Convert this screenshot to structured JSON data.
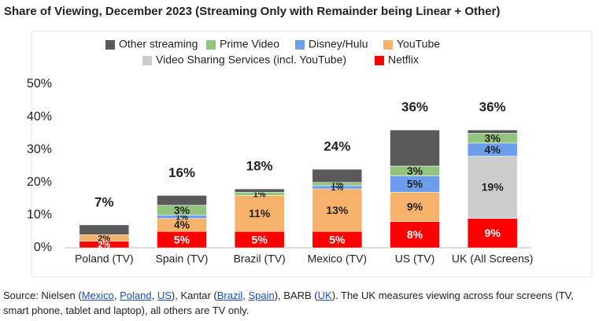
{
  "chart_data": {
    "type": "stacked-bar",
    "title": "Share of Viewing, December 2023 (Streaming Only with Remainder being Linear + Other)",
    "categories": [
      "Poland (TV)",
      "Spain (TV)",
      "Brazil (TV)",
      "Mexico (TV)",
      "US (TV)",
      "UK (All Screens)"
    ],
    "series": [
      {
        "name": "Netflix",
        "color": "#ff0000",
        "values": [
          2,
          5,
          5,
          5,
          8,
          9
        ],
        "value_labels": [
          "2%",
          "5%",
          "5%",
          "5%",
          "8%",
          "9%"
        ]
      },
      {
        "name": "YouTube",
        "color": "#f6b26b",
        "values": [
          2,
          4,
          11,
          13,
          9,
          null
        ],
        "value_labels": [
          "2%",
          "4%",
          "11%",
          "13%",
          "9%",
          null
        ]
      },
      {
        "name": "Video Sharing Services (incl. YouTube)",
        "color": "#cccccc",
        "values": [
          null,
          null,
          null,
          null,
          null,
          19
        ],
        "value_labels": [
          null,
          null,
          null,
          null,
          null,
          "19%"
        ]
      },
      {
        "name": "Disney/Hulu",
        "color": "#6d9eeb",
        "values": [
          null,
          1,
          null,
          1,
          5,
          4
        ],
        "value_labels": [
          null,
          "1%",
          null,
          "1%",
          "5%",
          "4%"
        ]
      },
      {
        "name": "Prime Video",
        "color": "#93c47d",
        "values": [
          null,
          3,
          1,
          1,
          3,
          3
        ],
        "value_labels": [
          null,
          "3%",
          "1%",
          "1%",
          "3%",
          "3%"
        ]
      },
      {
        "name": "Other streaming",
        "color": "#595959",
        "values": [
          3,
          3,
          1,
          4,
          11,
          1
        ]
      }
    ],
    "totals": [
      7,
      16,
      18,
      24,
      36,
      36
    ],
    "total_labels": [
      "7%",
      "16%",
      "18%",
      "24%",
      "36%",
      "36%"
    ],
    "ylim": [
      0,
      50
    ],
    "yticks": [
      {
        "value": 0,
        "label": "0%"
      },
      {
        "value": 10,
        "label": "10%"
      },
      {
        "value": 20,
        "label": "20%"
      },
      {
        "value": 30,
        "label": "30%"
      },
      {
        "value": 40,
        "label": "40%"
      },
      {
        "value": 50,
        "label": "50%"
      }
    ],
    "grid": false
  },
  "source": [
    "Source: Nielsen (",
    "Mexico",
    ", ",
    "Poland",
    ", ",
    "US",
    "), Kantar (",
    "Brazil",
    ", ",
    "Spain",
    "), BARB (",
    "UK",
    "). The UK measures viewing across four screens (TV, smart phone, tablet and laptop), all others are TV only."
  ]
}
